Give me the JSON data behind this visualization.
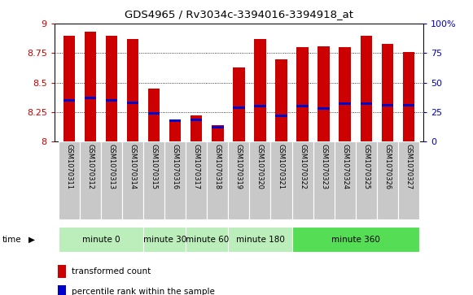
{
  "title": "GDS4965 / Rv3034c-3394016-3394918_at",
  "samples": [
    "GSM1070311",
    "GSM1070312",
    "GSM1070313",
    "GSM1070314",
    "GSM1070315",
    "GSM1070316",
    "GSM1070317",
    "GSM1070318",
    "GSM1070319",
    "GSM1070320",
    "GSM1070321",
    "GSM1070322",
    "GSM1070323",
    "GSM1070324",
    "GSM1070325",
    "GSM1070326",
    "GSM1070327"
  ],
  "bar_heights": [
    8.9,
    8.93,
    8.9,
    8.87,
    8.45,
    8.18,
    8.22,
    8.14,
    8.63,
    8.87,
    8.7,
    8.8,
    8.81,
    8.8,
    8.9,
    8.83,
    8.76
  ],
  "blue_markers": [
    8.35,
    8.37,
    8.35,
    8.33,
    8.24,
    8.18,
    8.185,
    8.12,
    8.29,
    8.3,
    8.22,
    8.3,
    8.28,
    8.32,
    8.32,
    8.31,
    8.31
  ],
  "bar_color": "#cc0000",
  "blue_color": "#0000cc",
  "ylim_left": [
    8.0,
    9.0
  ],
  "ylim_right": [
    0,
    100
  ],
  "yticks_left": [
    8.0,
    8.25,
    8.5,
    8.75,
    9.0
  ],
  "ytick_labels_left": [
    "8",
    "8.25",
    "8.5",
    "8.75",
    "9"
  ],
  "yticks_right": [
    0,
    25,
    50,
    75,
    100
  ],
  "ytick_labels_right": [
    "0",
    "25",
    "50",
    "75",
    "100%"
  ],
  "groups": [
    {
      "label": "minute 0",
      "start": 0,
      "end": 4
    },
    {
      "label": "minute 30",
      "start": 4,
      "end": 6
    },
    {
      "label": "minute 60",
      "start": 6,
      "end": 8
    },
    {
      "label": "minute 180",
      "start": 8,
      "end": 11
    },
    {
      "label": "minute 360",
      "start": 11,
      "end": 17
    }
  ],
  "group_colors": [
    "#bbeebb",
    "#bbeebb",
    "#bbeebb",
    "#bbeebb",
    "#55dd55"
  ],
  "time_label": "time",
  "legend_red": "transformed count",
  "legend_blue": "percentile rank within the sample",
  "sample_bg": "#c8c8c8",
  "bar_width": 0.55
}
